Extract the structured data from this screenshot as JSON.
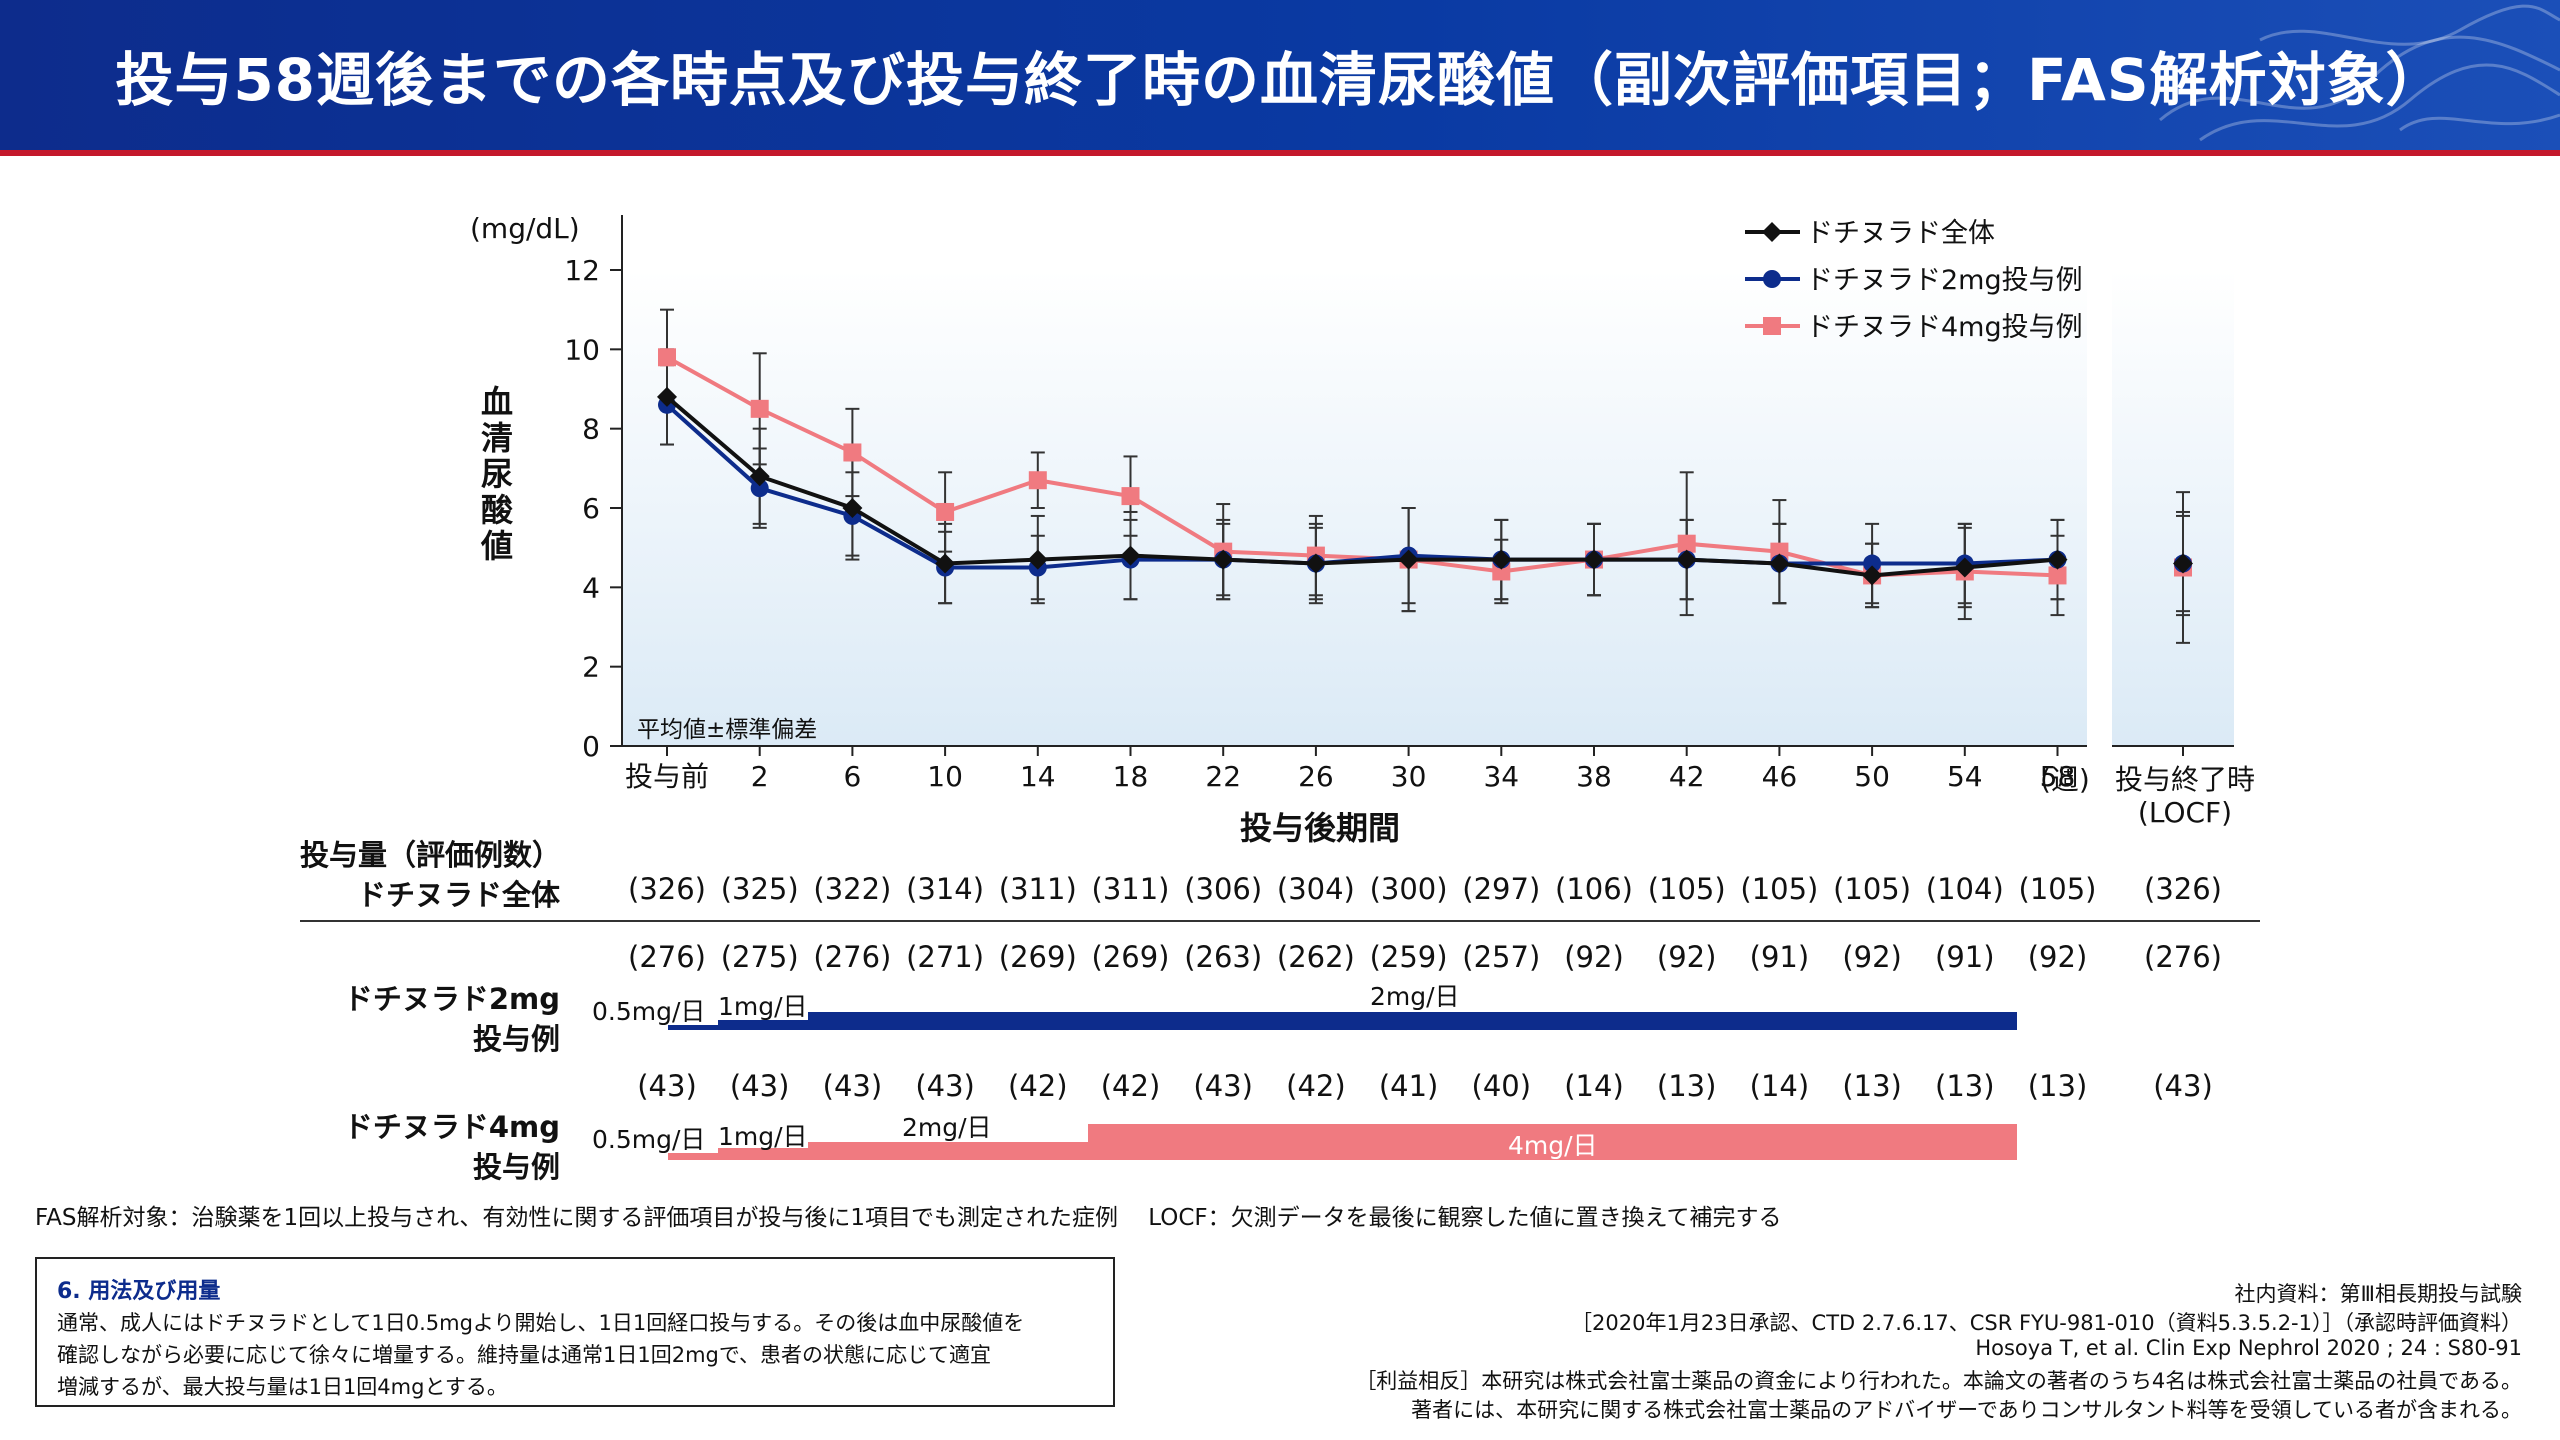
{
  "header": {
    "title": "投与58週後までの各時点及び投与終了時の血清尿酸値（副次評価項目；FAS解析対象）"
  },
  "colors": {
    "header_bg": "#0a3aa3",
    "accent_line": "#c4182b",
    "series_all": "#111111",
    "series_2mg": "#0d2c8c",
    "series_4mg": "#f07a80"
  },
  "chart_data": {
    "type": "line",
    "unit_label": "(mg/dL)",
    "ylabel": "血清尿酸値",
    "xlabel": "投与後期間",
    "ylim": [
      0,
      12
    ],
    "yticks": [
      "0",
      "2",
      "4",
      "6",
      "8",
      "10",
      "12"
    ],
    "categories": [
      "投与前",
      "2",
      "6",
      "10",
      "14",
      "18",
      "22",
      "26",
      "30",
      "34",
      "38",
      "42",
      "46",
      "50",
      "54",
      "58"
    ],
    "x_unit": "(週)",
    "locf_label": [
      "投与終了時",
      "(LOCF)"
    ],
    "annotation": "平均値±標準偏差",
    "legend_position": "top-right",
    "series": [
      {
        "name": "ドチヌラド全体",
        "marker": "diamond",
        "values": [
          8.8,
          6.8,
          6.0,
          4.6,
          4.7,
          4.8,
          4.7,
          4.6,
          4.7,
          4.7,
          4.7,
          4.7,
          4.6,
          4.3,
          4.5,
          4.7
        ],
        "sd": [
          1.2,
          1.2,
          1.2,
          1.0,
          1.1,
          1.1,
          1.0,
          1.0,
          1.3,
          1.0,
          0.9,
          1.0,
          1.0,
          0.8,
          1.0,
          1.0
        ],
        "locf": 4.6,
        "locf_sd": 1.3
      },
      {
        "name": "ドチヌラド2mg投与例",
        "marker": "circle",
        "values": [
          8.6,
          6.5,
          5.8,
          4.5,
          4.5,
          4.7,
          4.7,
          4.6,
          4.8,
          4.7,
          4.7,
          4.7,
          4.6,
          4.6,
          4.6,
          4.7
        ],
        "sd": [
          1.0,
          1.0,
          1.1,
          0.9,
          0.8,
          1.0,
          0.9,
          0.9,
          1.2,
          1.0,
          0.9,
          1.0,
          1.0,
          1.0,
          1.0,
          1.0
        ],
        "locf": 4.6,
        "locf_sd": 1.2
      },
      {
        "name": "ドチヌラド4mg投与例",
        "marker": "square",
        "values": [
          9.8,
          8.5,
          7.4,
          5.9,
          6.7,
          6.3,
          4.9,
          4.8,
          4.7,
          4.4,
          4.7,
          5.1,
          4.9,
          4.3,
          4.4,
          4.3
        ],
        "sd": [
          1.2,
          1.4,
          1.1,
          1.0,
          0.7,
          1.0,
          1.2,
          1.0,
          1.3,
          0.8,
          0.9,
          1.8,
          1.3,
          0.8,
          1.2,
          1.0
        ],
        "locf": 4.5,
        "locf_sd": 1.9
      }
    ]
  },
  "table": {
    "header_label": "投与量（評価例数）",
    "all_label": "ドチヌラド全体",
    "all_counts": [
      "(326)",
      "(325)",
      "(322)",
      "(314)",
      "(311)",
      "(311)",
      "(306)",
      "(304)",
      "(300)",
      "(297)",
      "(106)",
      "(105)",
      "(105)",
      "(105)",
      "(104)",
      "(105)"
    ],
    "all_locf": "(326)",
    "g2_label_1": "ドチヌラド2mg",
    "g2_label_2": "投与例",
    "g2_counts": [
      "(276)",
      "(275)",
      "(276)",
      "(271)",
      "(269)",
      "(269)",
      "(263)",
      "(262)",
      "(259)",
      "(257)",
      "(92)",
      "(92)",
      "(91)",
      "(92)",
      "(91)",
      "(92)"
    ],
    "g2_locf": "(276)",
    "g2_doses": [
      "0.5mg/日",
      "1mg/日",
      "2mg/日"
    ],
    "g4_label_1": "ドチヌラド4mg",
    "g4_label_2": "投与例",
    "g4_counts": [
      "(43)",
      "(43)",
      "(43)",
      "(43)",
      "(42)",
      "(42)",
      "(43)",
      "(42)",
      "(41)",
      "(40)",
      "(14)",
      "(13)",
      "(14)",
      "(13)",
      "(13)",
      "(13)"
    ],
    "g4_locf": "(43)",
    "g4_doses": [
      "0.5mg/日",
      "1mg/日",
      "2mg/日",
      "4mg/日"
    ]
  },
  "footnote": "FAS解析対象：治験薬を1回以上投与され、有効性に関する評価項目が投与後に1項目でも測定された症例　 LOCF：欠測データを最後に観察した値に置き換えて補完する",
  "dosage_box": {
    "title": "6. 用法及び用量",
    "lines": [
      "通常、成人にはドチヌラドとして1日0.5mgより開始し、1日1回経口投与する。その後は血中尿酸値を",
      "確認しながら必要に応じて徐々に増量する。維持量は通常1日1回2mgで、患者の状態に応じて適宜",
      "増減するが、最大投与量は1日1回4mgとする。"
    ]
  },
  "references": [
    "社内資料：第Ⅲ相長期投与試験",
    "［2020年1月23日承認、CTD 2.7.6.17、CSR FYU-981-010（資料5.3.5.2-1）］（承認時評価資料）",
    "Hosoya T, et al. Clin Exp Nephrol 2020 ; 24 : S80-91",
    "［利益相反］本研究は株式会社富士薬品の資金により行われた。本論文の著者のうち4名は株式会社富士薬品の社員である。",
    "著者には、本研究に関する株式会社富士薬品のアドバイザーでありコンサルタント料等を受領している者が含まれる。"
  ]
}
